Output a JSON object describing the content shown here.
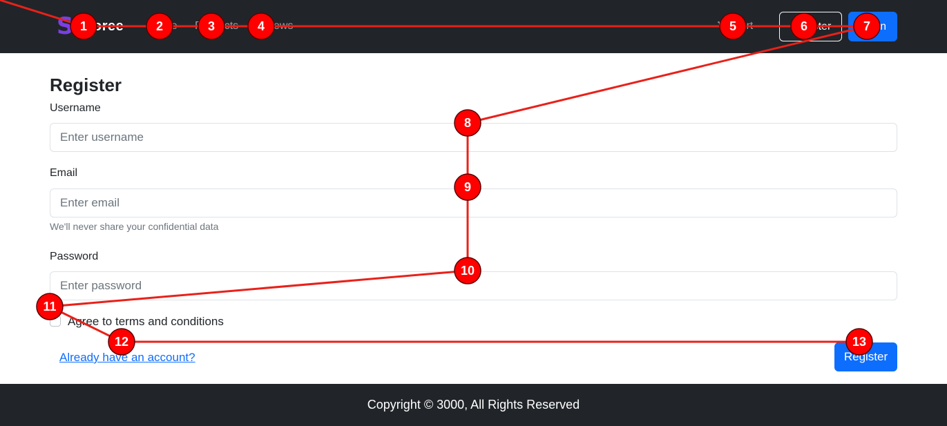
{
  "navbar": {
    "brand_text": "Storee",
    "links": [
      {
        "label": "Home"
      },
      {
        "label": "Products"
      },
      {
        "label": "Reviews"
      }
    ],
    "cart_label": "Cart",
    "register_label": "Register",
    "login_label": "Login"
  },
  "form": {
    "title": "Register",
    "username": {
      "label": "Username",
      "placeholder": "Enter username",
      "value": ""
    },
    "email": {
      "label": "Email",
      "placeholder": "Enter email",
      "value": "",
      "help": "We'll never share your confidential data"
    },
    "password": {
      "label": "Password",
      "placeholder": "Enter password",
      "value": ""
    },
    "agree_label": "Agree to terms and conditions",
    "account_link": "Already have an account?",
    "submit_label": "Register"
  },
  "footer": {
    "text": "Copyright © 3000, All Rights Reserved"
  },
  "annotations": {
    "color": "#e8211a",
    "markers": [
      {
        "label": "1"
      },
      {
        "label": "2"
      },
      {
        "label": "3"
      },
      {
        "label": "4"
      },
      {
        "label": "5"
      },
      {
        "label": "6"
      },
      {
        "label": "7"
      },
      {
        "label": "8"
      },
      {
        "label": "9"
      },
      {
        "label": "10"
      },
      {
        "label": "11"
      },
      {
        "label": "12"
      },
      {
        "label": "13"
      }
    ]
  }
}
